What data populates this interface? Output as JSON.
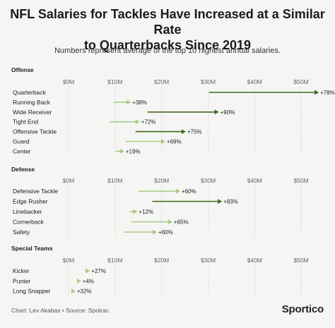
{
  "title_line1": "NFL Salaries for Tackles Have Increased at a Similar Rate",
  "title_line2": "to Quarterbacks Since 2019",
  "subtitle": "Numbers represent average of the top 10 highest annual salaries.",
  "footer": "Chart: Lev Akabas • Source: Spotrac",
  "brand": "Sportico",
  "colors": {
    "dark": "#3d6b1a",
    "light": "#a9cc86",
    "grid": "#c9c9c9",
    "axis_text": "#666666"
  },
  "chart_data": {
    "type": "arrow-range",
    "title": "NFL Salaries for Tackles Have Increased at a Similar Rate to Quarterbacks Since 2019",
    "subtitle": "Numbers represent average of the top 10 highest annual salaries.",
    "x_ticks": [
      "$0M",
      "$10M",
      "$20M",
      "$30M",
      "$40M",
      "$50M"
    ],
    "x_tick_values": [
      0,
      10,
      20,
      30,
      40,
      50
    ],
    "xlim": [
      0,
      55
    ],
    "grid": true,
    "unit": "$M",
    "groups": [
      {
        "name": "Offense",
        "rows": [
          {
            "label": "Quarterback",
            "start": 30.2,
            "end": 53.8,
            "change": "+78%",
            "dark": true
          },
          {
            "label": "Running Back",
            "start": 9.7,
            "end": 13.4,
            "change": "+38%",
            "dark": false
          },
          {
            "label": "Wide Receiver",
            "start": 17.0,
            "end": 32.3,
            "change": "+90%",
            "dark": true
          },
          {
            "label": "Tight End",
            "start": 8.9,
            "end": 15.3,
            "change": "+72%",
            "dark": false
          },
          {
            "label": "Offensive Tackle",
            "start": 14.4,
            "end": 25.2,
            "change": "+75%",
            "dark": true
          },
          {
            "label": "Guard",
            "start": 12.3,
            "end": 20.8,
            "change": "+69%",
            "dark": false
          },
          {
            "label": "Center",
            "start": 10.1,
            "end": 12.0,
            "change": "+19%",
            "dark": false
          }
        ]
      },
      {
        "name": "Defense",
        "rows": [
          {
            "label": "Defensive Tackle",
            "start": 15.0,
            "end": 24.0,
            "change": "+60%",
            "dark": false
          },
          {
            "label": "Edge Rusher",
            "start": 18.0,
            "end": 33.0,
            "change": "+83%",
            "dark": true
          },
          {
            "label": "Linebacker",
            "start": 13.2,
            "end": 14.8,
            "change": "+12%",
            "dark": false
          },
          {
            "label": "Cornerback",
            "start": 13.5,
            "end": 22.3,
            "change": "+65%",
            "dark": false
          },
          {
            "label": "Safety",
            "start": 11.9,
            "end": 19.0,
            "change": "+60%",
            "dark": false
          }
        ]
      },
      {
        "name": "Special Teams",
        "rows": [
          {
            "label": "Kicker",
            "start": 3.6,
            "end": 4.6,
            "change": "+27%",
            "dark": false
          },
          {
            "label": "Punter",
            "start": 2.6,
            "end": 2.7,
            "change": "+4%",
            "dark": false
          },
          {
            "label": "Long Snapper",
            "start": 1.1,
            "end": 1.5,
            "change": "+32%",
            "dark": false
          }
        ]
      }
    ]
  }
}
